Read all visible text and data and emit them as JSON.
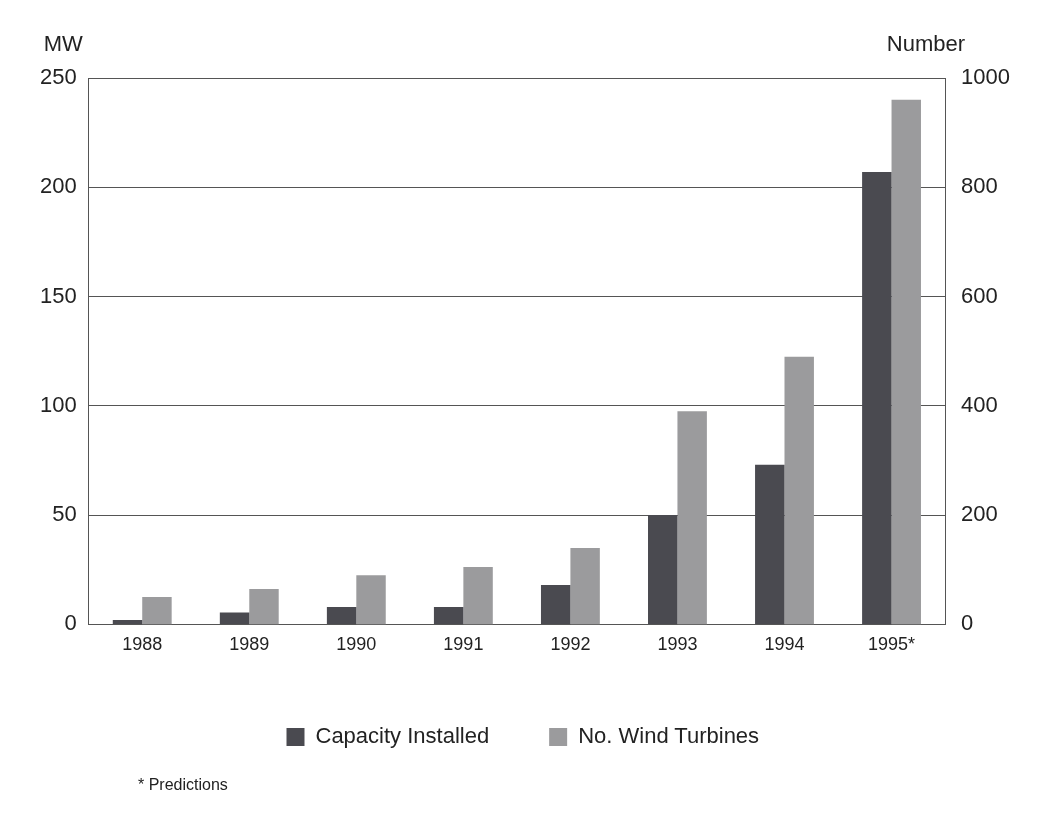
{
  "chart_data": {
    "type": "bar",
    "categories": [
      "1988",
      "1989",
      "1990",
      "1991",
      "1992",
      "1993",
      "1994",
      "1995*"
    ],
    "series": [
      {
        "name": "Capacity Installed",
        "color": "#4a4a50",
        "values": [
          2,
          5.5,
          8,
          8,
          18,
          50,
          73,
          207
        ]
      },
      {
        "name": "No. Wind Turbines",
        "color": "#9b9b9d",
        "axis": "y2",
        "values": [
          50,
          65,
          90,
          105,
          140,
          390,
          490,
          960
        ]
      }
    ],
    "ylabel": "MW",
    "y2label": "Number",
    "ylim": [
      0,
      250
    ],
    "yticks": [
      0,
      50,
      100,
      150,
      200,
      250
    ],
    "y2lim": [
      0,
      1000
    ],
    "y2ticks": [
      0,
      200,
      400,
      600,
      800,
      1000
    ],
    "grid": "y",
    "legend": "bottom",
    "annotations": [
      "* Predictions"
    ]
  }
}
